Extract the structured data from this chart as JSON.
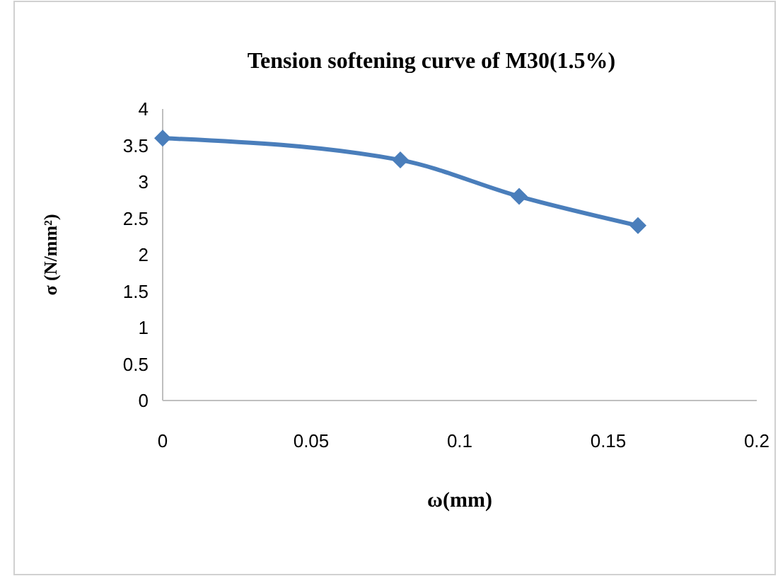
{
  "chart_data": {
    "type": "line",
    "title": "Tension softening curve of M30(1.5%)",
    "xlabel": "ω(mm)",
    "ylabel": "σ (N/mm²)",
    "x": [
      0,
      0.08,
      0.12,
      0.16
    ],
    "series": [
      {
        "color": "#4a7ebb",
        "values": [
          3.6,
          3.3,
          2.8,
          2.4
        ]
      }
    ],
    "xlim": [
      0,
      0.2
    ],
    "xticks": [
      0,
      0.05,
      0.1,
      0.15,
      0.2
    ],
    "ylim": [
      0,
      4
    ],
    "yticks": [
      0,
      0.5,
      1,
      1.5,
      2,
      2.5,
      3,
      3.5,
      4
    ],
    "marker": "diamond",
    "line_style": "solid"
  }
}
